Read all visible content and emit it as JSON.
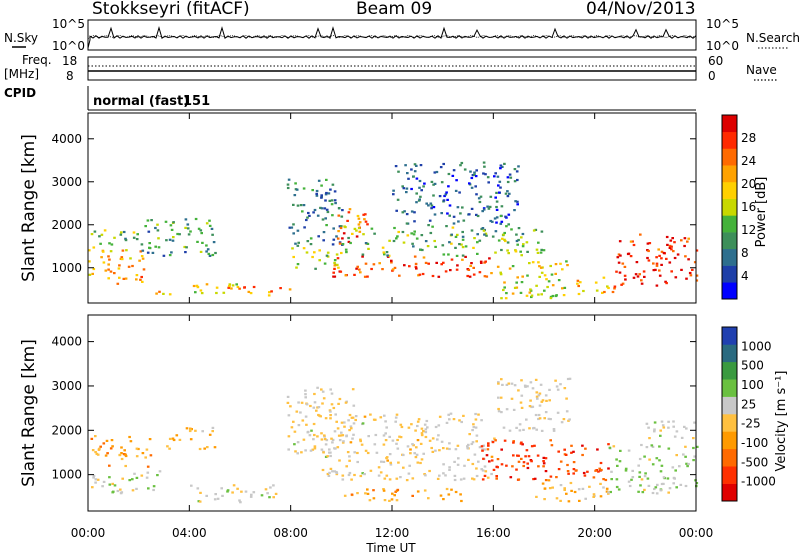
{
  "header": {
    "station": "Stokkseyri (fitACF)",
    "beam": "Beam 09",
    "date": "04/Nov/2013"
  },
  "noise_panel": {
    "left_label": "N.Sky",
    "right_label": "N.Search",
    "left_ticks": [
      "10^5",
      "10^0"
    ],
    "right_ticks": [
      "10^5",
      "10^0"
    ]
  },
  "freq_panel": {
    "left_label_1": "Freq.",
    "left_label_2": "[MHz]",
    "right_label": "Nave",
    "left_ticks": [
      "18",
      "8"
    ],
    "right_ticks": [
      "60",
      "0"
    ]
  },
  "cpid_panel": {
    "label": "CPID",
    "program": "normal (fast)",
    "cpid": "151"
  },
  "chart_data": [
    {
      "type": "heatmap",
      "name": "power",
      "ylabel": "Slant Range [km]",
      "ylim": [
        180,
        4600
      ],
      "yticks": [
        "1000",
        "2000",
        "3000",
        "4000"
      ],
      "xlim": [
        0,
        24
      ],
      "colorbar": {
        "label": "Power [dB]",
        "ticks": [
          "28",
          "24",
          "20",
          "16",
          "12",
          "8",
          "4"
        ],
        "range": [
          0,
          30
        ],
        "colors": [
          "#0000ff",
          "#1e3fa8",
          "#2e6f8e",
          "#3d8f5a",
          "#44b23a",
          "#c8d800",
          "#ffd000",
          "#ffa200",
          "#ff6a00",
          "#ff2a00",
          "#dd0000"
        ]
      },
      "scatter_bands": [
        {
          "t0": 0.0,
          "t1": 2.3,
          "r0": 650,
          "r1": 1500,
          "p": 20
        },
        {
          "t0": 0.0,
          "t1": 2.0,
          "r0": 1500,
          "r1": 1900,
          "p": 12
        },
        {
          "t0": 2.0,
          "t1": 5.0,
          "r0": 1300,
          "r1": 2200,
          "p": 10
        },
        {
          "t0": 2.5,
          "t1": 6.0,
          "r0": 400,
          "r1": 650,
          "p": 18
        },
        {
          "t0": 5.5,
          "t1": 8.0,
          "r0": 350,
          "r1": 600,
          "p": 22
        },
        {
          "t0": 7.8,
          "t1": 10.0,
          "r0": 1500,
          "r1": 3100,
          "p": 8
        },
        {
          "t0": 8.0,
          "t1": 10.0,
          "r0": 1000,
          "r1": 1500,
          "p": 14
        },
        {
          "t0": 9.6,
          "t1": 16.0,
          "r0": 800,
          "r1": 1300,
          "p": 26
        },
        {
          "t0": 9.8,
          "t1": 11.0,
          "r0": 1500,
          "r1": 2400,
          "p": 24
        },
        {
          "t0": 10.0,
          "t1": 18.0,
          "r0": 1300,
          "r1": 2000,
          "p": 12
        },
        {
          "t0": 12.0,
          "t1": 17.0,
          "r0": 2000,
          "r1": 3500,
          "p": 6
        },
        {
          "t0": 16.0,
          "t1": 19.0,
          "r0": 300,
          "r1": 1200,
          "p": 16
        },
        {
          "t0": 19.0,
          "t1": 20.8,
          "r0": 400,
          "r1": 800,
          "p": 20
        },
        {
          "t0": 20.8,
          "t1": 24.0,
          "r0": 600,
          "r1": 1800,
          "p": 26
        }
      ]
    },
    {
      "type": "heatmap",
      "name": "velocity",
      "ylabel": "Slant Range [km]",
      "ylim": [
        180,
        4600
      ],
      "yticks": [
        "1000",
        "2000",
        "3000",
        "4000"
      ],
      "xlim": [
        0,
        24
      ],
      "colorbar": {
        "label": "Velocity [m s⁻¹]",
        "ticks": [
          "1000",
          "500",
          "100",
          "25",
          "-25",
          "-100",
          "-500",
          "-1000"
        ],
        "range": [
          -1200,
          1200
        ],
        "colors": [
          "#e00000",
          "#ff3000",
          "#ff6a00",
          "#ff9a00",
          "#ffc040",
          "#c8c8c8",
          "#6ac040",
          "#3a9a40",
          "#2a6a80",
          "#2040b0"
        ]
      },
      "scatter_bands": [
        {
          "t0": 0.0,
          "t1": 2.5,
          "r0": 1200,
          "r1": 1900,
          "v": -300
        },
        {
          "t0": 0.0,
          "t1": 3.0,
          "r0": 600,
          "r1": 1100,
          "v": 150
        },
        {
          "t0": 3.0,
          "t1": 5.0,
          "r0": 1600,
          "r1": 2100,
          "v": -200
        },
        {
          "t0": 4.0,
          "t1": 7.5,
          "r0": 400,
          "r1": 800,
          "v": 80
        },
        {
          "t0": 7.8,
          "t1": 10.5,
          "r0": 1500,
          "r1": 3000,
          "v": 0
        },
        {
          "t0": 9.0,
          "t1": 16.0,
          "r0": 900,
          "r1": 2400,
          "v": 0
        },
        {
          "t0": 10.0,
          "t1": 15.0,
          "r0": 400,
          "r1": 700,
          "v": -300
        },
        {
          "t0": 15.5,
          "t1": 20.5,
          "r0": 900,
          "r1": 1800,
          "v": -800
        },
        {
          "t0": 16.0,
          "t1": 19.0,
          "r0": 2000,
          "r1": 3200,
          "v": 0
        },
        {
          "t0": 17.5,
          "t1": 20.5,
          "r0": 400,
          "r1": 900,
          "v": -150
        },
        {
          "t0": 20.5,
          "t1": 24.0,
          "r0": 600,
          "r1": 1700,
          "v": 200
        },
        {
          "t0": 22.0,
          "t1": 24.0,
          "r0": 1800,
          "r1": 2300,
          "v": 60
        }
      ]
    }
  ],
  "x_axis": {
    "label": "Time UT",
    "ticks": [
      "00:00",
      "04:00",
      "08:00",
      "12:00",
      "16:00",
      "20:00",
      "00:00"
    ]
  }
}
